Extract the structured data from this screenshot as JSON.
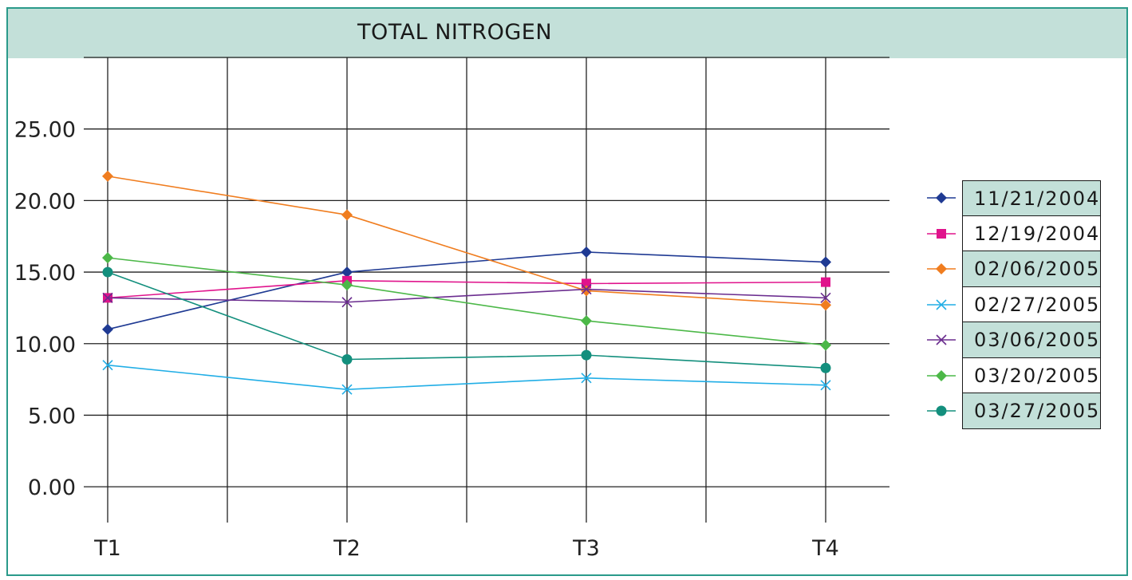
{
  "chart_data": {
    "type": "line",
    "title": "TOTAL NITROGEN",
    "categories": [
      "T1",
      "T2",
      "T3",
      "T4"
    ],
    "y_ticks": [
      "0.00",
      "5.00",
      "10.00",
      "15.00",
      "20.00",
      "25.00"
    ],
    "ylim": [
      -2.5,
      30
    ],
    "grid": true,
    "legend_position": "right",
    "series": [
      {
        "name": "11/21/2004",
        "color": "#1f3a93",
        "marker": "diamond",
        "values": [
          11.0,
          15.0,
          16.4,
          15.7
        ]
      },
      {
        "name": "12/19/2004",
        "color": "#e0138c",
        "marker": "square",
        "values": [
          13.2,
          14.4,
          14.2,
          14.3
        ]
      },
      {
        "name": "02/06/2005",
        "color": "#f07d1f",
        "marker": "diamond",
        "values": [
          21.7,
          19.0,
          13.7,
          12.7
        ]
      },
      {
        "name": "02/27/2005",
        "color": "#21aee6",
        "marker": "x",
        "values": [
          8.5,
          6.8,
          7.6,
          7.1
        ]
      },
      {
        "name": "03/06/2005",
        "color": "#6b2d8f",
        "marker": "x",
        "values": [
          13.2,
          12.9,
          13.8,
          13.2
        ]
      },
      {
        "name": "03/20/2005",
        "color": "#4cb848",
        "marker": "diamond",
        "values": [
          16.0,
          14.1,
          11.6,
          9.9
        ]
      },
      {
        "name": "03/27/2005",
        "color": "#138f7d",
        "marker": "circle",
        "values": [
          15.0,
          8.9,
          9.2,
          8.3
        ]
      }
    ]
  }
}
